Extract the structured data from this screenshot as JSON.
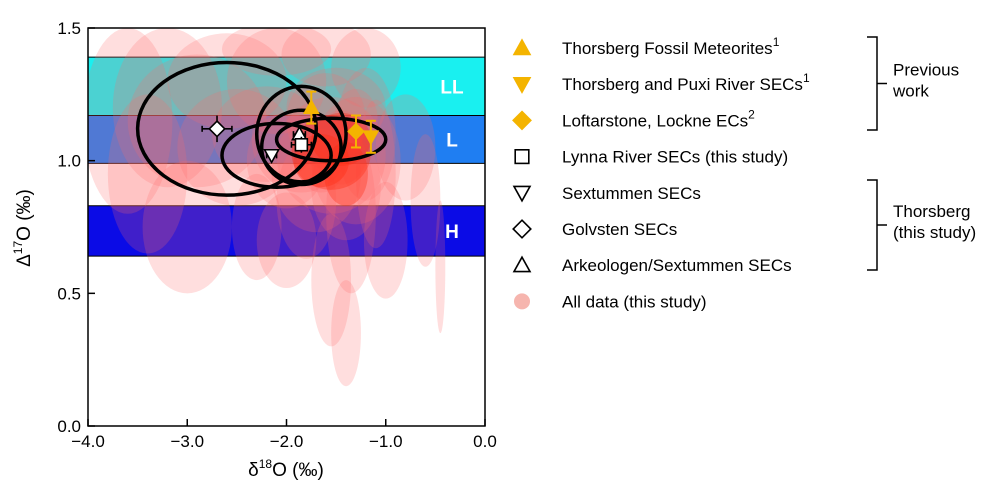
{
  "chart_data": {
    "type": "scatter",
    "xlabel_main": "δ",
    "xlabel_sup": "18",
    "xlabel_rest": "O (‰)",
    "ylabel_main": "Δ",
    "ylabel_sup": "17",
    "ylabel_rest": "O (‰)",
    "xlim": [
      -4.0,
      0.0
    ],
    "ylim": [
      0.0,
      1.5
    ],
    "xticks": [
      "−4.0",
      "−3.0",
      "−2.0",
      "−1.0",
      "0.0"
    ],
    "xtick_values": [
      -4.0,
      -3.0,
      -2.0,
      -1.0,
      0.0
    ],
    "yticks": [
      "0.0",
      "0.5",
      "1.0",
      "1.5"
    ],
    "ytick_values": [
      0.0,
      0.5,
      1.0,
      1.5
    ],
    "bands": [
      {
        "label": "LL",
        "y_range": [
          1.17,
          1.39
        ],
        "color": "#19f0f0"
      },
      {
        "label": "L",
        "y_range": [
          0.99,
          1.17
        ],
        "color": "#1f7ef2"
      },
      {
        "label": "H",
        "y_range": [
          0.64,
          0.83
        ],
        "color": "#0b0be6"
      }
    ],
    "colors": {
      "all_data": "#ff6b6b",
      "all_data_dense": "#ff2a10",
      "previous_work": "#f4b400"
    },
    "all_data_ellipses": [
      {
        "cx": -1.55,
        "cy": 1.02,
        "rx": 0.55,
        "ry": 0.22
      },
      {
        "cx": -1.3,
        "cy": 1.0,
        "rx": 0.45,
        "ry": 0.24
      },
      {
        "cx": -1.85,
        "cy": 1.08,
        "rx": 0.5,
        "ry": 0.2
      },
      {
        "cx": -1.6,
        "cy": 1.15,
        "rx": 0.4,
        "ry": 0.18
      },
      {
        "cx": -1.4,
        "cy": 0.9,
        "rx": 0.35,
        "ry": 0.2
      },
      {
        "cx": -2.0,
        "cy": 1.0,
        "rx": 0.4,
        "ry": 0.18
      },
      {
        "cx": -1.2,
        "cy": 1.1,
        "rx": 0.3,
        "ry": 0.25
      },
      {
        "cx": -1.7,
        "cy": 0.95,
        "rx": 0.45,
        "ry": 0.22
      },
      {
        "cx": -1.5,
        "cy": 1.2,
        "rx": 0.5,
        "ry": 0.15
      },
      {
        "cx": -2.2,
        "cy": 1.1,
        "rx": 0.55,
        "ry": 0.18
      },
      {
        "cx": -1.35,
        "cy": 0.8,
        "rx": 0.25,
        "ry": 0.3
      },
      {
        "cx": -1.1,
        "cy": 0.95,
        "rx": 0.2,
        "ry": 0.28
      },
      {
        "cx": -2.5,
        "cy": 1.05,
        "rx": 0.6,
        "ry": 0.22
      },
      {
        "cx": -2.9,
        "cy": 1.15,
        "rx": 0.7,
        "ry": 0.25
      },
      {
        "cx": -3.2,
        "cy": 1.2,
        "rx": 0.55,
        "ry": 0.3
      },
      {
        "cx": -3.6,
        "cy": 1.15,
        "rx": 0.45,
        "ry": 0.35
      },
      {
        "cx": -3.4,
        "cy": 0.95,
        "rx": 0.4,
        "ry": 0.3
      },
      {
        "cx": -3.0,
        "cy": 0.75,
        "rx": 0.45,
        "ry": 0.25
      },
      {
        "cx": -2.6,
        "cy": 1.3,
        "rx": 0.6,
        "ry": 0.18
      },
      {
        "cx": -2.1,
        "cy": 1.3,
        "rx": 0.5,
        "ry": 0.2
      },
      {
        "cx": -1.6,
        "cy": 1.4,
        "rx": 0.45,
        "ry": 0.12
      },
      {
        "cx": -2.1,
        "cy": 1.42,
        "rx": 0.55,
        "ry": 0.1
      },
      {
        "cx": -1.2,
        "cy": 1.35,
        "rx": 0.35,
        "ry": 0.15
      },
      {
        "cx": -0.8,
        "cy": 1.05,
        "rx": 0.3,
        "ry": 0.2
      },
      {
        "cx": -0.6,
        "cy": 0.85,
        "rx": 0.15,
        "ry": 0.25
      },
      {
        "cx": -0.45,
        "cy": 0.6,
        "rx": 0.05,
        "ry": 0.25
      },
      {
        "cx": -1.4,
        "cy": 0.35,
        "rx": 0.15,
        "ry": 0.2
      },
      {
        "cx": -1.55,
        "cy": 0.55,
        "rx": 0.2,
        "ry": 0.25
      },
      {
        "cx": -2.3,
        "cy": 0.75,
        "rx": 0.25,
        "ry": 0.2
      },
      {
        "cx": -2.0,
        "cy": 0.7,
        "rx": 0.3,
        "ry": 0.18
      },
      {
        "cx": -1.0,
        "cy": 0.7,
        "rx": 0.22,
        "ry": 0.22
      },
      {
        "cx": -1.8,
        "cy": 0.85,
        "rx": 0.3,
        "ry": 0.22
      },
      {
        "cx": -1.45,
        "cy": 1.05,
        "rx": 0.28,
        "ry": 0.14
      },
      {
        "cx": -1.65,
        "cy": 1.0,
        "rx": 0.25,
        "ry": 0.12
      },
      {
        "cx": -1.3,
        "cy": 1.15,
        "rx": 0.22,
        "ry": 0.12
      }
    ],
    "group_ellipses": [
      {
        "cx": -2.6,
        "cy": 1.12,
        "rx": 0.9,
        "ry": 0.25
      },
      {
        "cx": -1.85,
        "cy": 1.1,
        "rx": 0.45,
        "ry": 0.18
      },
      {
        "cx": -1.55,
        "cy": 1.08,
        "rx": 0.55,
        "ry": 0.08
      },
      {
        "cx": -2.1,
        "cy": 1.02,
        "rx": 0.55,
        "ry": 0.12
      },
      {
        "cx": -1.85,
        "cy": 1.05,
        "rx": 0.4,
        "ry": 0.14
      }
    ],
    "previous_work_points": [
      {
        "marker": "triangle-up",
        "x": -1.75,
        "y": 1.2
      },
      {
        "marker": "triangle-down",
        "x": -1.15,
        "y": 1.09
      },
      {
        "marker": "diamond",
        "x": -1.3,
        "y": 1.11
      }
    ],
    "this_study_points": [
      {
        "marker": "diamond",
        "x": -2.7,
        "y": 1.12,
        "xerr": 0.15,
        "yerr": 0.05
      },
      {
        "marker": "triangle-down",
        "x": -2.15,
        "y": 1.02,
        "xerr": 0.05,
        "yerr": 0.02
      },
      {
        "marker": "triangle-up",
        "x": -1.87,
        "y": 1.1,
        "xerr": 0.06,
        "yerr": 0.03
      },
      {
        "marker": "square",
        "x": -1.85,
        "y": 1.06,
        "xerr": 0.1,
        "yerr": 0.03
      }
    ]
  },
  "legend": {
    "items": [
      {
        "marker": "triangle-up-filled",
        "label": "Thorsberg Fossil Meteorites",
        "sup": "1",
        "color": "#f4b400"
      },
      {
        "marker": "triangle-down-filled",
        "label": "Thorsberg and Puxi River SECs",
        "sup": "1",
        "color": "#f4b400"
      },
      {
        "marker": "diamond-filled",
        "label": "Loftarstone, Lockne ECs",
        "sup": "2",
        "color": "#f4b400"
      },
      {
        "marker": "square-open",
        "label": "Lynna River SECs (this study)",
        "sup": ""
      },
      {
        "marker": "triangle-down-open",
        "label": "Sextummen SECs",
        "sup": ""
      },
      {
        "marker": "diamond-open",
        "label": "Golvsten SECs",
        "sup": ""
      },
      {
        "marker": "triangle-up-open",
        "label": "Arkeologen/Sextummen SECs",
        "sup": ""
      },
      {
        "marker": "circle-pink",
        "label": "All data (this study)",
        "sup": ""
      }
    ],
    "brackets": [
      {
        "lines": [
          "Previous",
          "work"
        ]
      },
      {
        "lines": [
          "Thorsberg",
          "(this study)"
        ]
      }
    ]
  }
}
